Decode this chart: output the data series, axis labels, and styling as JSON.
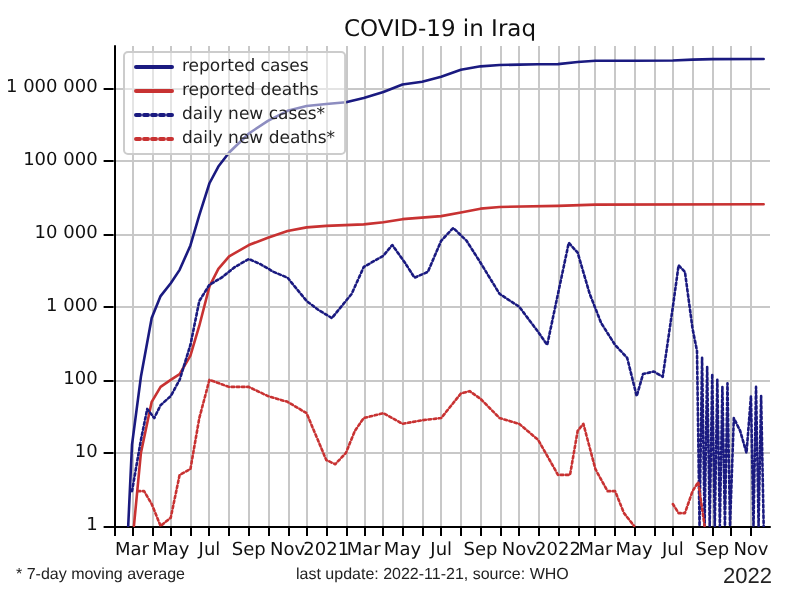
{
  "chart_data": {
    "type": "line",
    "title": "COVID-19 in Iraq",
    "xlim": [
      "2020-02-01",
      "2022-12-01"
    ],
    "xticks": [
      {
        "value": "2020-02-01",
        "label": null
      },
      {
        "value": "2020-03-01",
        "label": "Mar"
      },
      {
        "value": "2020-04-01",
        "label": null
      },
      {
        "value": "2020-05-01",
        "label": "May"
      },
      {
        "value": "2020-06-01",
        "label": null
      },
      {
        "value": "2020-07-01",
        "label": "Jul"
      },
      {
        "value": "2020-08-01",
        "label": null
      },
      {
        "value": "2020-09-01",
        "label": "Sep"
      },
      {
        "value": "2020-10-01",
        "label": null
      },
      {
        "value": "2020-11-01",
        "label": "Nov"
      },
      {
        "value": "2020-12-01",
        "label": null
      },
      {
        "value": "2021-01-01",
        "label": "2021"
      },
      {
        "value": "2021-02-01",
        "label": null
      },
      {
        "value": "2021-03-01",
        "label": "Mar"
      },
      {
        "value": "2021-04-01",
        "label": null
      },
      {
        "value": "2021-05-01",
        "label": "May"
      },
      {
        "value": "2021-06-01",
        "label": null
      },
      {
        "value": "2021-07-01",
        "label": "Jul"
      },
      {
        "value": "2021-08-01",
        "label": null
      },
      {
        "value": "2021-09-01",
        "label": "Sep"
      },
      {
        "value": "2021-10-01",
        "label": null
      },
      {
        "value": "2021-11-01",
        "label": "Nov"
      },
      {
        "value": "2021-12-01",
        "label": null
      },
      {
        "value": "2022-01-01",
        "label": "2022"
      },
      {
        "value": "2022-02-01",
        "label": null
      },
      {
        "value": "2022-03-01",
        "label": "Mar"
      },
      {
        "value": "2022-04-01",
        "label": null
      },
      {
        "value": "2022-05-01",
        "label": "May"
      },
      {
        "value": "2022-06-01",
        "label": null
      },
      {
        "value": "2022-07-01",
        "label": "Jul"
      },
      {
        "value": "2022-08-01",
        "label": null
      },
      {
        "value": "2022-09-01",
        "label": "Sep"
      },
      {
        "value": "2022-10-01",
        "label": null
      },
      {
        "value": "2022-11-01",
        "label": "Nov"
      }
    ],
    "ylim": [
      1,
      3700000
    ],
    "yticks": [
      1,
      10,
      100,
      {
        "value": 1000,
        "label": "1 000"
      },
      {
        "value": 10000,
        "label": "10 000"
      },
      {
        "value": 100000,
        "label": "100 000"
      },
      {
        "value": 1000000,
        "label": "1 000 000"
      }
    ],
    "log": "y",
    "grid": true,
    "legend": "top left",
    "marker": "none",
    "annotations": [
      "* 7-day moving average",
      "last update: 2022-11-21, source: WHO",
      "2022"
    ],
    "series": [
      {
        "name": "reported cases",
        "color": "#1a1a80",
        "line_style": "solid",
        "x": [
          "2020-02-24",
          "2020-03-01",
          "2020-03-15",
          "2020-04-01",
          "2020-04-15",
          "2020-05-01",
          "2020-05-15",
          "2020-06-01",
          "2020-06-15",
          "2020-07-01",
          "2020-07-15",
          "2020-08-01",
          "2020-09-01",
          "2020-10-01",
          "2020-11-01",
          "2020-12-01",
          "2021-01-01",
          "2021-02-01",
          "2021-03-01",
          "2021-04-01",
          "2021-05-01",
          "2021-06-01",
          "2021-07-01",
          "2021-08-01",
          "2021-09-01",
          "2021-10-01",
          "2021-11-01",
          "2021-12-01",
          "2022-01-01",
          "2022-02-01",
          "2022-03-01",
          "2022-05-01",
          "2022-07-01",
          "2022-08-01",
          "2022-09-01",
          "2022-11-21"
        ],
        "values": [
          1,
          13,
          110,
          700,
          1400,
          2100,
          3200,
          6900,
          18000,
          49000,
          83000,
          129000,
          235000,
          350000,
          480000,
          560000,
          595000,
          630000,
          720000,
          870000,
          1100000,
          1200000,
          1400000,
          1750000,
          1950000,
          2030000,
          2060000,
          2080000,
          2090000,
          2230000,
          2320000,
          2330000,
          2340000,
          2410000,
          2450000,
          2460000
        ]
      },
      {
        "name": "reported deaths",
        "color": "#c83232",
        "line_style": "solid",
        "x": [
          "2020-03-04",
          "2020-03-15",
          "2020-04-01",
          "2020-04-15",
          "2020-05-01",
          "2020-05-15",
          "2020-06-01",
          "2020-06-15",
          "2020-07-01",
          "2020-07-15",
          "2020-08-01",
          "2020-09-01",
          "2020-10-01",
          "2020-11-01",
          "2020-12-01",
          "2021-01-01",
          "2021-03-01",
          "2021-04-01",
          "2021-05-01",
          "2021-07-01",
          "2021-08-01",
          "2021-09-01",
          "2021-10-01",
          "2022-01-01",
          "2022-03-01",
          "2022-11-21"
        ],
        "values": [
          1,
          10,
          50,
          80,
          100,
          120,
          215,
          550,
          1900,
          3300,
          4900,
          7000,
          8800,
          10900,
          12200,
          12800,
          13400,
          14300,
          15800,
          17400,
          19500,
          22000,
          23200,
          24000,
          25000,
          25300
        ]
      },
      {
        "name": "daily new cases*",
        "color": "#1a1a80",
        "line_style": "dotted",
        "x": [
          "2020-03-01",
          "2020-03-15",
          "2020-03-25",
          "2020-04-05",
          "2020-04-15",
          "2020-05-01",
          "2020-05-15",
          "2020-06-01",
          "2020-06-15",
          "2020-07-01",
          "2020-07-20",
          "2020-08-10",
          "2020-09-01",
          "2020-09-20",
          "2020-10-10",
          "2020-11-01",
          "2020-12-01",
          "2020-12-20",
          "2021-01-10",
          "2021-01-20",
          "2021-02-10",
          "2021-03-01",
          "2021-04-01",
          "2021-04-15",
          "2021-05-05",
          "2021-05-20",
          "2021-06-10",
          "2021-07-01",
          "2021-07-20",
          "2021-08-10",
          "2021-09-01",
          "2021-10-01",
          "2021-11-01",
          "2021-12-01",
          "2021-12-15",
          "2022-01-01",
          "2022-01-18",
          "2022-02-01",
          "2022-02-20",
          "2022-03-10",
          "2022-04-01",
          "2022-04-20",
          "2022-05-05",
          "2022-05-15",
          "2022-06-01",
          "2022-06-15",
          "2022-07-01",
          "2022-07-10",
          "2022-07-20",
          "2022-08-01",
          "2022-08-08",
          "2022-08-12",
          "2022-08-16",
          "2022-08-20",
          "2022-08-24",
          "2022-08-28",
          "2022-09-01",
          "2022-09-05",
          "2022-09-09",
          "2022-09-13",
          "2022-09-17",
          "2022-09-21",
          "2022-09-25",
          "2022-09-29",
          "2022-10-05",
          "2022-10-15",
          "2022-10-25",
          "2022-11-01",
          "2022-11-05",
          "2022-11-09",
          "2022-11-13",
          "2022-11-17",
          "2022-11-21"
        ],
        "values": [
          3,
          15,
          40,
          30,
          45,
          60,
          100,
          300,
          1200,
          2000,
          2500,
          3500,
          4500,
          3800,
          3000,
          2500,
          1200,
          900,
          700,
          900,
          1500,
          3500,
          5000,
          7000,
          4000,
          2500,
          3000,
          8000,
          12000,
          8000,
          4000,
          1500,
          1000,
          450,
          300,
          1500,
          7500,
          5500,
          1500,
          600,
          300,
          200,
          60,
          120,
          130,
          110,
          1000,
          3700,
          3000,
          500,
          250,
          1,
          200,
          1,
          150,
          1,
          120,
          1,
          100,
          1,
          80,
          1,
          90,
          1,
          30,
          20,
          10,
          60,
          1,
          80,
          1,
          60,
          1
        ]
      },
      {
        "name": "daily new deaths*",
        "color": "#c83232",
        "line_style": "dotted",
        "x": [
          "2020-03-10",
          "2020-03-20",
          "2020-04-01",
          "2020-04-15",
          "2020-05-01",
          "2020-05-15",
          "2020-06-01",
          "2020-06-15",
          "2020-07-01",
          "2020-08-01",
          "2020-09-01",
          "2020-10-01",
          "2020-11-01",
          "2020-12-01",
          "2021-01-01",
          "2021-01-15",
          "2021-02-01",
          "2021-02-15",
          "2021-03-01",
          "2021-04-01",
          "2021-05-01",
          "2021-06-01",
          "2021-07-01",
          "2021-08-01",
          "2021-08-15",
          "2021-09-01",
          "2021-10-01",
          "2021-11-01",
          "2021-12-01",
          "2022-01-01",
          "2022-01-20",
          "2022-02-01",
          "2022-02-10",
          "2022-03-01",
          "2022-03-20",
          "2022-04-01",
          "2022-04-15",
          "2022-05-01",
          "2022-05-15",
          "2022-07-01",
          "2022-07-10",
          "2022-07-20",
          "2022-08-01",
          "2022-08-10",
          "2022-08-20"
        ],
        "values": [
          3,
          3,
          2,
          1,
          1.3,
          5,
          6,
          30,
          100,
          80,
          80,
          60,
          50,
          35,
          8,
          7,
          10,
          20,
          30,
          35,
          25,
          28,
          30,
          65,
          70,
          55,
          30,
          25,
          15,
          5,
          5,
          20,
          25,
          6,
          3,
          3,
          1.5,
          1,
          null,
          2,
          1.5,
          1.5,
          3,
          4,
          1
        ]
      }
    ]
  }
}
